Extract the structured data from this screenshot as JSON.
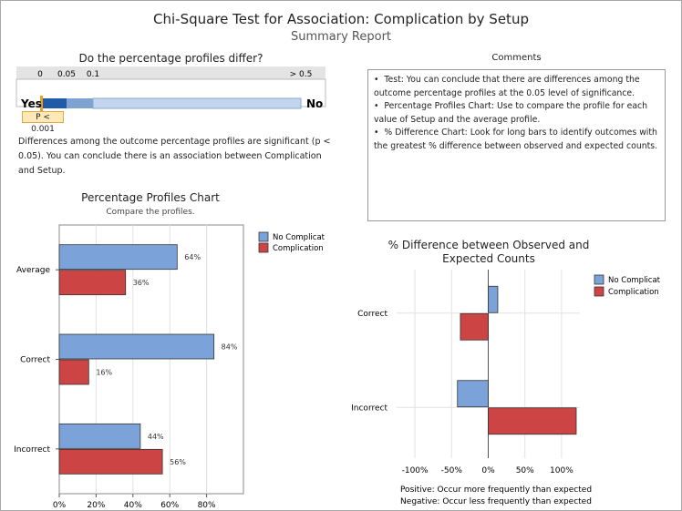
{
  "header": {
    "title": "Chi-Square Test for Association: Complication by Setup",
    "subtitle": "Summary Report"
  },
  "significance": {
    "question": "Do the percentage profiles differ?",
    "scale_labels": [
      "0",
      "0.05",
      "0.1",
      "> 0.5"
    ],
    "yes_label": "Yes",
    "no_label": "No",
    "p_value_label": "P < 0.001",
    "conclusion": "Differences among the outcome percentage profiles are significant (p < 0.05). You can conclude there is an association between Complication and Setup.",
    "colors": {
      "dark": "#1f5ba6",
      "mid": "#7fa3d1",
      "light": "#c4d6ee",
      "marker": "#f0a020"
    }
  },
  "comments": {
    "title": "Comments",
    "items": [
      "Test: You can conclude that there are differences among the outcome percentage profiles at the 0.05 level of significance.",
      "Percentage Profiles Chart: Use to compare the profile for each value of Setup and the average profile.",
      "% Difference Chart: Look for long bars to identify outcomes with the greatest % difference between observed and expected counts."
    ]
  },
  "chart_data": [
    {
      "type": "bar",
      "orientation": "horizontal",
      "title": "Percentage Profiles Chart",
      "subtitle": "Compare the profiles.",
      "categories": [
        "Average",
        "Correct",
        "Incorrect"
      ],
      "series": [
        {
          "name": "No Complicat",
          "color": "#7ba3d9",
          "values": [
            64,
            84,
            44
          ],
          "labels": [
            "64%",
            "84%",
            "44%"
          ]
        },
        {
          "name": "Complication",
          "color": "#cc4444",
          "values": [
            36,
            16,
            56
          ],
          "labels": [
            "36%",
            "16%",
            "56%"
          ]
        }
      ],
      "xlim": [
        0,
        100
      ],
      "xticks": [
        0,
        20,
        40,
        60,
        80
      ],
      "xtick_labels": [
        "0%",
        "20%",
        "40%",
        "60%",
        "80%"
      ],
      "grid": true,
      "legend": "top-right"
    },
    {
      "type": "bar",
      "orientation": "horizontal",
      "title": "% Difference between Observed and Expected Counts",
      "title_lines": [
        "% Difference between Observed and",
        "Expected Counts"
      ],
      "categories": [
        "Correct",
        "Incorrect"
      ],
      "series": [
        {
          "name": "No Complicat",
          "color": "#7ba3d9",
          "values": [
            13,
            -42
          ]
        },
        {
          "name": "Complication",
          "color": "#cc4444",
          "values": [
            -38,
            120
          ]
        }
      ],
      "xlim": [
        -125,
        125
      ],
      "xticks": [
        -100,
        -50,
        0,
        50,
        100
      ],
      "xtick_labels": [
        "-100%",
        "-50%",
        "0%",
        "50%",
        "100%"
      ],
      "grid": true,
      "legend": "top-right",
      "notes": [
        "Positive: Occur more frequently than expected",
        "Negative: Occur less frequently than expected"
      ]
    }
  ]
}
